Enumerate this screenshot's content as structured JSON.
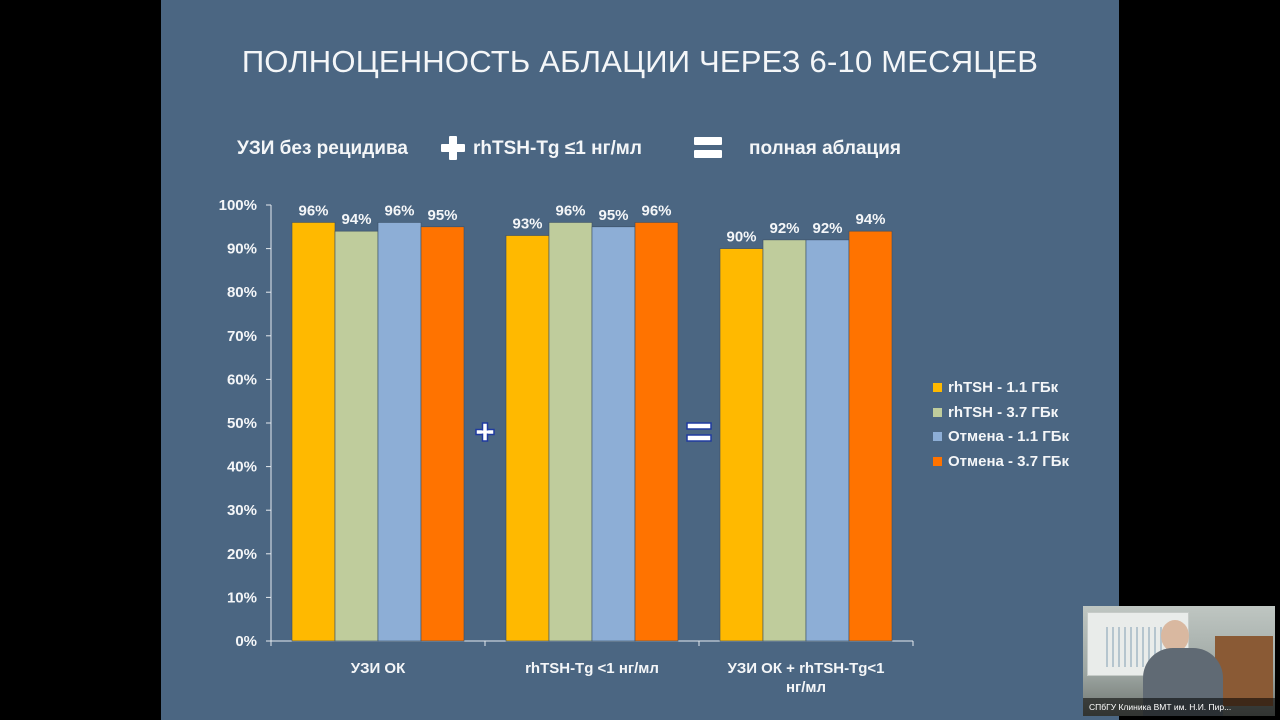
{
  "slide": {
    "title": "ПОЛНОЦЕННОСТЬ АБЛАЦИИ ЧЕРЕЗ 6-10 МЕСЯЦЕВ",
    "equation": {
      "term1": "УЗИ без рецидива",
      "term2": "rhTSH-Tg ≤1 нг/мл",
      "result": "полная аблация"
    }
  },
  "chart_data": {
    "type": "bar",
    "categories": [
      "УЗИ ОК",
      "rhTSH-Tg <1 нг/мл",
      "УЗИ ОК + rhTSH-Tg<1 нг/мл"
    ],
    "category_lines": [
      [
        "УЗИ ОК"
      ],
      [
        "rhTSH-Tg <1 нг/мл"
      ],
      [
        "УЗИ ОК + rhTSH-Tg<1",
        "нг/мл"
      ]
    ],
    "series": [
      {
        "name": "rhTSH - 1.1 ГБк",
        "color": "#ffb900",
        "values": [
          96,
          93,
          90
        ],
        "labels": [
          "96%",
          "93%",
          "90%"
        ]
      },
      {
        "name": "rhTSH - 3.7 ГБк",
        "color": "#bfcc9c",
        "values": [
          94,
          96,
          92
        ],
        "labels": [
          "94%",
          "96%",
          "92%"
        ]
      },
      {
        "name": "Отмена - 1.1 ГБк",
        "color": "#8daed6",
        "values": [
          96,
          95,
          92
        ],
        "labels": [
          "96%",
          "95%",
          "92%"
        ]
      },
      {
        "name": "Отмена - 3.7 ГБк",
        "color": "#ff7300",
        "values": [
          95,
          96,
          94
        ],
        "labels": [
          "95%",
          "96%",
          "94%"
        ]
      }
    ],
    "ylim": [
      0,
      100
    ],
    "yticks": [
      "0%",
      "10%",
      "20%",
      "30%",
      "40%",
      "50%",
      "60%",
      "70%",
      "80%",
      "90%",
      "100%"
    ],
    "operators_between_groups": [
      "+",
      "="
    ],
    "grid": false,
    "legend_position": "right"
  },
  "video_inset": {
    "caption": "СПбГУ Клиника ВМТ им. Н.И. Пир..."
  }
}
